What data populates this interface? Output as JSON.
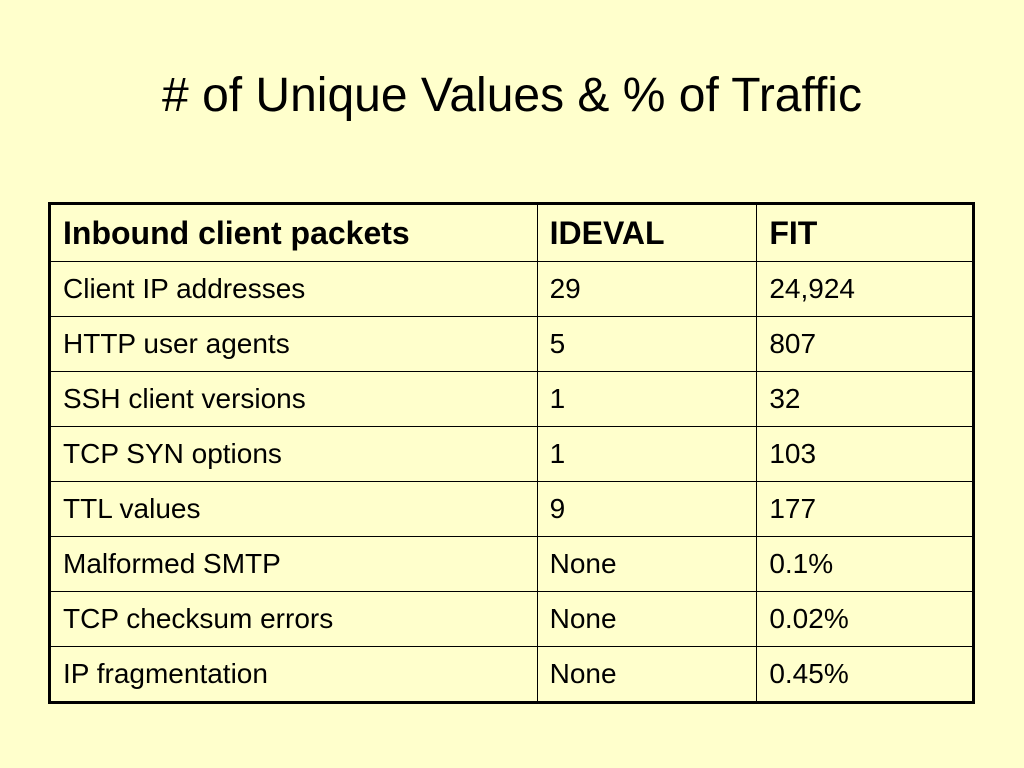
{
  "slide": {
    "title": "# of Unique Values & % of Traffic"
  },
  "table": {
    "headers": [
      "Inbound client packets",
      "IDEVAL",
      "FIT"
    ],
    "rows": [
      [
        "Client IP addresses",
        "29",
        "24,924"
      ],
      [
        "HTTP user agents",
        "5",
        "807"
      ],
      [
        "SSH client versions",
        "1",
        "32"
      ],
      [
        "TCP SYN options",
        "1",
        "103"
      ],
      [
        "TTL values",
        "9",
        "177"
      ],
      [
        "Malformed SMTP",
        "None",
        "0.1%"
      ],
      [
        "TCP checksum errors",
        "None",
        "0.02%"
      ],
      [
        "IP fragmentation",
        "None",
        "0.45%"
      ]
    ]
  }
}
